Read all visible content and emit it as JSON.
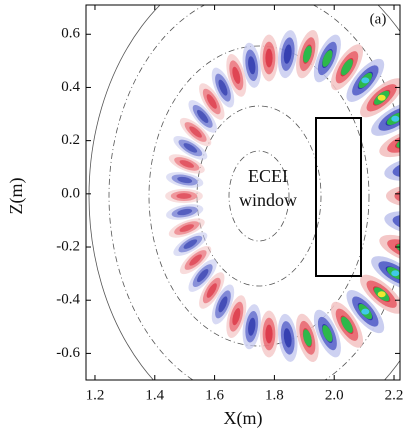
{
  "chart_data": {
    "type": "contour",
    "panel_label": "(a)",
    "x_label": "X(m)",
    "y_label": "Z(m)",
    "annotation": [
      "ECEI",
      "window"
    ],
    "xlim": [
      1.17,
      2.22
    ],
    "ylim": [
      -0.7,
      0.71
    ],
    "xticks": [
      1.2,
      1.4,
      1.6,
      1.8,
      {
        "value": 2,
        "label": "2.0"
      },
      2.2
    ],
    "yticks": [
      -0.6,
      -0.4,
      -0.2,
      {
        "value": 0,
        "label": "0.0"
      },
      0.2,
      0.4,
      0.6
    ]
  }
}
